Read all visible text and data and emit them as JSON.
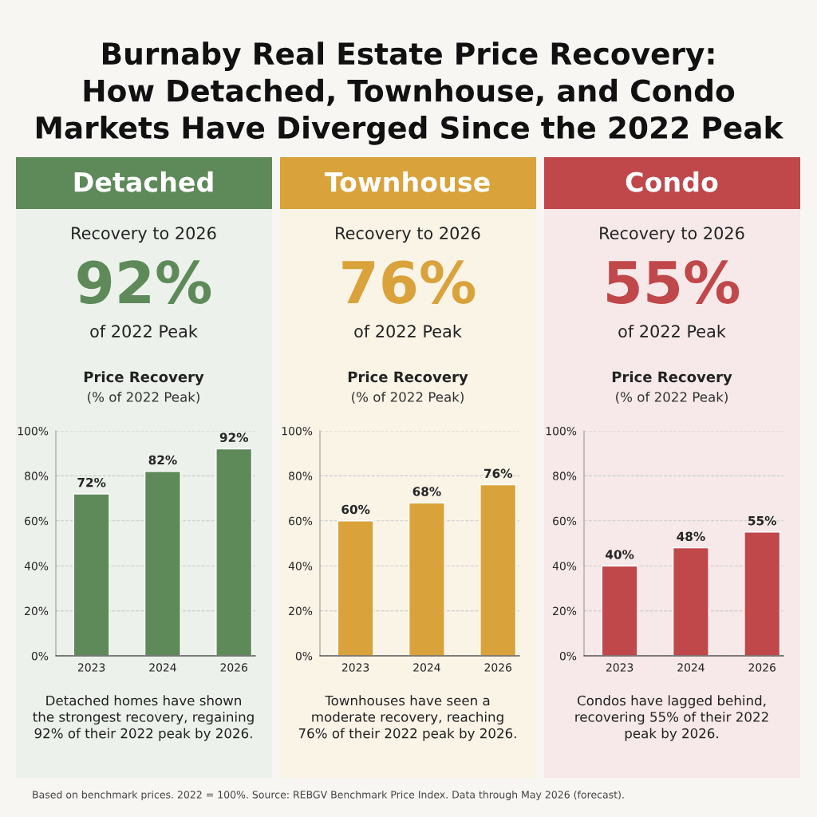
{
  "chart_data": [
    {
      "type": "other",
      "title": "Burnaby Real Estate Price Recovery:\nHow Detached, Townhouse, and Condo\nMarkets Have Diverged Since the 2022 Peak",
      "annotations": [
        "Based on benchmark prices. 2022 = 100%. Source: REBGV Benchmark Price Index. Data through May 2026 (forecast)."
      ]
    },
    {
      "type": "bar",
      "title": "Detached",
      "subtitle": "Recovery to 2026",
      "annotations": [
        "92%",
        "of 2022 Peak",
        "Price Recovery",
        "(% of 2022 Peak)",
        "Detached homes have shown\nthe strongest recovery, regaining\n92% of their 2022 peak by 2026."
      ],
      "categories": [
        "2023",
        "2024",
        "2026"
      ],
      "values": [
        72,
        82,
        92
      ],
      "value_labels": [
        "72%",
        "82%",
        "92%"
      ],
      "color": "#5e8a5a",
      "ylim": [
        0,
        100
      ],
      "yticks": [
        {
          "value": 0,
          "label": "0%"
        },
        {
          "value": 20,
          "label": "20%"
        },
        {
          "value": 40,
          "label": "40%"
        },
        {
          "value": 60,
          "label": "60%"
        },
        {
          "value": 80,
          "label": "80%"
        },
        {
          "value": 100,
          "label": "100%"
        }
      ],
      "grid": "y"
    },
    {
      "type": "bar",
      "title": "Townhouse",
      "subtitle": "Recovery to 2026",
      "annotations": [
        "76%",
        "of 2022 Peak",
        "Price Recovery",
        "(% of 2022 Peak)",
        "Townhouses have seen a\nmoderate recovery, reaching\n76% of their 2022 peak by 2026."
      ],
      "categories": [
        "2023",
        "2024",
        "2026"
      ],
      "values": [
        60,
        68,
        76
      ],
      "value_labels": [
        "60%",
        "68%",
        "76%"
      ],
      "color": "#d9a23a",
      "ylim": [
        0,
        100
      ],
      "yticks": [
        {
          "value": 0,
          "label": "0%"
        },
        {
          "value": 20,
          "label": "20%"
        },
        {
          "value": 40,
          "label": "40%"
        },
        {
          "value": 60,
          "label": "60%"
        },
        {
          "value": 80,
          "label": "80%"
        },
        {
          "value": 100,
          "label": "100%"
        }
      ],
      "grid": "y"
    },
    {
      "type": "bar",
      "title": "Condo",
      "subtitle": "Recovery to 2026",
      "annotations": [
        "55%",
        "of 2022 Peak",
        "Price Recovery",
        "(% of 2022 Peak)",
        "Condos have lagged behind,\nrecovering 55% of their 2022\npeak by 2026."
      ],
      "categories": [
        "2023",
        "2024",
        "2026"
      ],
      "values": [
        40,
        48,
        55
      ],
      "value_labels": [
        "40%",
        "48%",
        "55%"
      ],
      "color": "#c0474a",
      "ylim": [
        0,
        100
      ],
      "yticks": [
        {
          "value": 0,
          "label": "0%"
        },
        {
          "value": 20,
          "label": "20%"
        },
        {
          "value": 40,
          "label": "40%"
        },
        {
          "value": 60,
          "label": "60%"
        },
        {
          "value": 80,
          "label": "80%"
        },
        {
          "value": 100,
          "label": "100%"
        }
      ],
      "grid": "y"
    }
  ]
}
